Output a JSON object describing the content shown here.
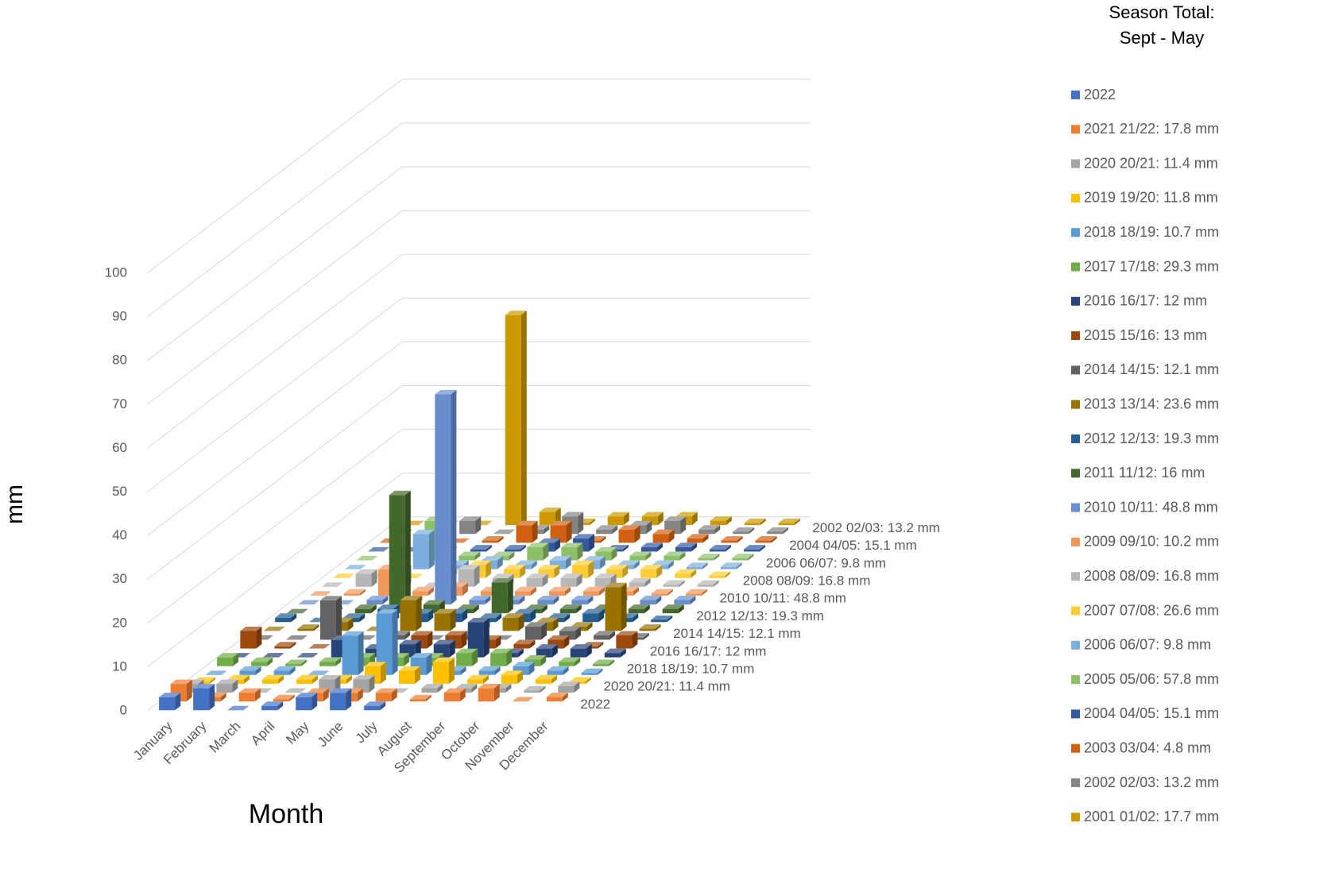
{
  "chart_data": {
    "type": "bar3d",
    "legend_title": [
      "Season Total:",
      "Sept - May"
    ],
    "xlabel": "Month",
    "ylabel": "mm",
    "categories": [
      "January",
      "February",
      "March",
      "April",
      "May",
      "June",
      "July",
      "August",
      "September",
      "October",
      "November",
      "December"
    ],
    "z_categories": [
      "2022",
      null,
      "2020 20/21: 11.4 mm",
      null,
      "2018 18/19: 10.7 mm",
      null,
      "2016 16/17: 12 mm",
      null,
      "2014 14/15: 12.1 mm",
      null,
      "2012 12/13: 19.3 mm",
      null,
      "2010 10/11: 48.8 mm",
      null,
      "2008 08/09: 16.8 mm",
      null,
      "2006 06/07: 9.8 mm",
      null,
      "2004 04/05: 15.1 mm",
      null,
      "2002 02/03: 13.2 mm",
      null
    ],
    "ylim": [
      0,
      100
    ],
    "yticks": [
      0,
      10,
      20,
      30,
      40,
      50,
      60,
      70,
      80,
      90,
      100
    ],
    "grid": true,
    "series": [
      {
        "name": "2022",
        "color": "#4472c4",
        "values": [
          3,
          5,
          0,
          1,
          3,
          4,
          1,
          null,
          null,
          null,
          null,
          null
        ]
      },
      {
        "name": "2021 21/22: 17.8 mm",
        "color": "#ed7d31",
        "values": [
          4,
          1,
          2,
          0.5,
          2,
          2,
          2,
          0.5,
          2,
          3,
          0,
          1
        ]
      },
      {
        "name": "2020 20/21: 11.4 mm",
        "color": "#a5a5a5",
        "values": [
          2,
          2,
          0,
          0,
          3,
          3,
          0,
          1,
          1,
          1,
          0.5,
          1.5
        ]
      },
      {
        "name": "2019 19/20: 11.8 mm",
        "color": "#ffc000",
        "values": [
          0.5,
          1,
          1,
          1,
          1,
          4,
          3,
          5,
          1,
          2,
          1,
          0.5
        ]
      },
      {
        "name": "2018 18/19: 10.7 mm",
        "color": "#5b9bd5",
        "values": [
          0,
          1,
          1,
          0,
          9,
          14,
          4,
          1,
          1,
          2,
          1,
          0.5
        ]
      },
      {
        "name": "2017 17/18: 29.3 mm",
        "color": "#70ad47",
        "values": [
          2,
          1,
          0.5,
          1,
          2,
          2,
          2,
          3,
          3,
          1.5,
          1,
          0.5
        ]
      },
      {
        "name": "2016 16/17: 12 mm",
        "color": "#264478",
        "values": [
          0,
          0,
          0,
          4,
          2,
          3,
          3,
          8,
          1,
          2,
          2,
          1
        ]
      },
      {
        "name": "2015 15/16: 13 mm",
        "color": "#9e480e",
        "values": [
          4,
          0.5,
          0,
          0,
          0,
          3,
          3,
          2,
          1,
          2,
          0.5,
          3
        ]
      },
      {
        "name": "2014 14/15: 12.1 mm",
        "color": "#636363",
        "values": [
          0,
          0,
          9,
          0,
          1,
          0,
          1,
          0,
          3,
          2,
          1,
          0.5
        ]
      },
      {
        "name": "2013 13/14: 23.6 mm",
        "color": "#997300",
        "values": [
          0,
          0.5,
          2,
          0,
          7,
          4,
          1,
          3,
          2,
          1,
          10,
          0.5
        ]
      },
      {
        "name": "2012 12/13: 19.3 mm",
        "color": "#255e91",
        "values": [
          1,
          0,
          1,
          3,
          2,
          2,
          1,
          2,
          1,
          2,
          1,
          0.5
        ]
      },
      {
        "name": "2011 11/12: 16 mm",
        "color": "#43682b",
        "values": [
          0,
          0.5,
          1,
          27,
          2,
          1,
          7,
          1,
          1,
          1,
          1,
          1
        ]
      },
      {
        "name": "2010 10/11: 48.8 mm",
        "color": "#698ed0",
        "values": [
          0,
          0,
          1,
          1,
          48,
          1,
          1,
          1,
          1,
          1,
          1,
          1
        ]
      },
      {
        "name": "2009 09/10: 10.2 mm",
        "color": "#f1975a",
        "values": [
          0,
          0.5,
          6,
          1,
          2,
          1,
          1,
          1,
          1,
          1,
          0.5,
          0.5
        ]
      },
      {
        "name": "2008 08/09: 16.8 mm",
        "color": "#b7b7b7",
        "values": [
          0,
          3,
          4,
          0,
          4,
          2,
          2,
          2,
          2,
          1,
          0.5,
          0.5
        ]
      },
      {
        "name": "2007 07/08: 26.6 mm",
        "color": "#ffcd33",
        "values": [
          0,
          0,
          0,
          1,
          3,
          2,
          2,
          3,
          2,
          2,
          1,
          0.5
        ]
      },
      {
        "name": "2006 06/07: 9.8 mm",
        "color": "#7cafdd",
        "values": [
          0,
          0,
          8,
          1,
          2,
          1,
          2,
          2,
          1,
          1,
          0.5,
          0.5
        ]
      },
      {
        "name": "2005 05/06: 57.8 mm",
        "color": "#8cc168",
        "values": [
          0,
          0,
          9,
          1,
          1,
          3,
          3,
          2,
          1,
          1,
          0.5,
          0.5
        ]
      },
      {
        "name": "2004 04/05: 15.1 mm",
        "color": "#335aa1",
        "values": [
          0,
          0,
          0,
          0.5,
          0.5,
          2,
          3,
          0.5,
          1,
          1,
          0.5,
          0.5
        ]
      },
      {
        "name": "2003 03/04:  4.8 mm",
        "color": "#d26012",
        "values": [
          0,
          0,
          0,
          0.5,
          4,
          4,
          0.5,
          3,
          2,
          1,
          0.5,
          0.5
        ]
      },
      {
        "name": "2002 02/03: 13.2 mm",
        "color": "#848484",
        "values": [
          0,
          0,
          3,
          0,
          1,
          4,
          1,
          2,
          3,
          1,
          0.5,
          0.5
        ]
      },
      {
        "name": "2001 01/02: 17.7 mm",
        "color": "#cc9a00",
        "values": [
          0,
          0,
          0,
          48,
          3,
          0.5,
          2,
          2,
          2,
          1,
          0.5,
          0.5
        ]
      }
    ]
  }
}
